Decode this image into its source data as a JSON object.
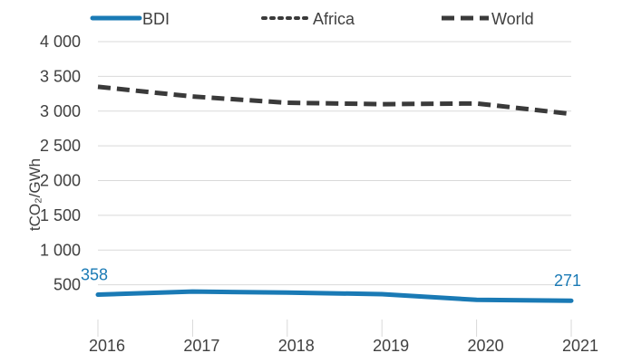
{
  "chart_data": {
    "type": "line",
    "x": [
      "2016",
      "2017",
      "2018",
      "2019",
      "2020",
      "2021"
    ],
    "ylabel": "tCO₂/GWh",
    "ylim": [
      0,
      4000
    ],
    "yticks": [
      {
        "value": 500,
        "label": "500"
      },
      {
        "value": 1000,
        "label": "1 000"
      },
      {
        "value": 1500,
        "label": "1 500"
      },
      {
        "value": 2000,
        "label": "2 000"
      },
      {
        "value": 2500,
        "label": "2 500"
      },
      {
        "value": 3000,
        "label": "3 000"
      },
      {
        "value": 3500,
        "label": "3 500"
      },
      {
        "value": 4000,
        "label": "4 000"
      }
    ],
    "grid": true,
    "legend": "top",
    "series": [
      {
        "name": "BDI",
        "style": "solid",
        "color": "#1a7ab5",
        "values": [
          358,
          402,
          388,
          365,
          283,
          271
        ]
      },
      {
        "name": "Africa",
        "style": "dotted",
        "color": "#3a3a3a",
        "values": [
          null,
          null,
          null,
          null,
          null,
          null
        ]
      },
      {
        "name": "World",
        "style": "dashed",
        "color": "#3a3a3a",
        "values": [
          3350,
          3210,
          3120,
          3100,
          3110,
          2960
        ]
      }
    ],
    "annotations": [
      {
        "series": "BDI",
        "x": "2016",
        "label": "358"
      },
      {
        "series": "BDI",
        "x": "2021",
        "label": "271"
      }
    ]
  }
}
